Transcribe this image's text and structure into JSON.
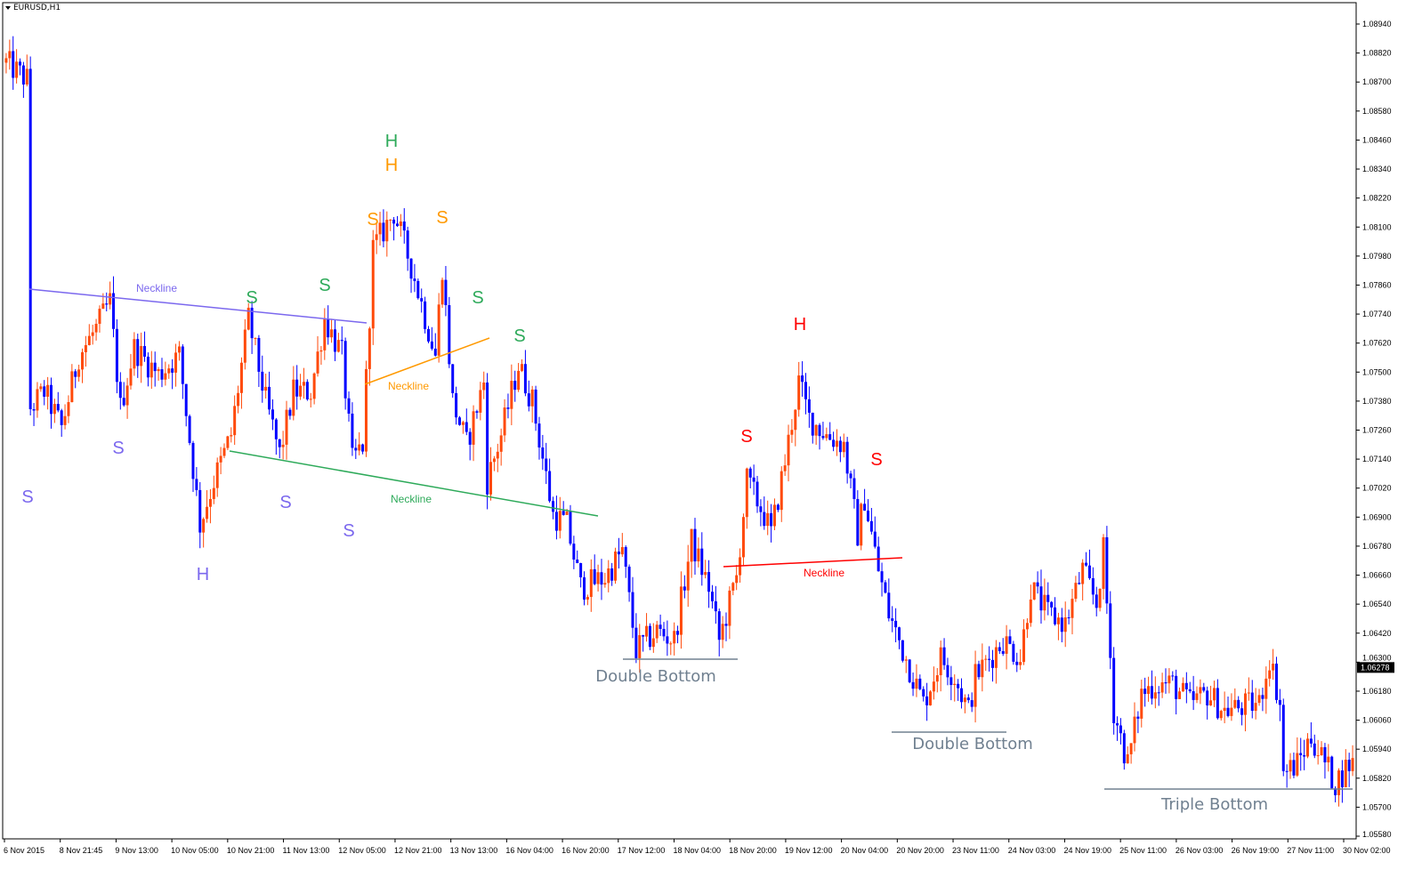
{
  "header": {
    "symbol_timeframe": "EURUSD,H1"
  },
  "colors": {
    "bull": "#ff4a0a",
    "bear": "#0000ff",
    "purple": "#7b68ee",
    "green": "#2eaa5a",
    "orange": "#ff9900",
    "red": "#ff0000",
    "gray": "#708090"
  },
  "chart_data": {
    "type": "candlestick",
    "symbol": "EURUSD",
    "timeframe": "H1",
    "ylim": [
      1.0558,
      1.0896
    ],
    "y_ticks": [
      "1.08940",
      "1.08820",
      "1.08700",
      "1.08580",
      "1.08460",
      "1.08340",
      "1.08220",
      "1.08100",
      "1.07980",
      "1.07860",
      "1.07740",
      "1.07620",
      "1.07500",
      "1.07380",
      "1.07260",
      "1.07140",
      "1.07020",
      "1.06900",
      "1.06780",
      "1.06660",
      "1.06540",
      "1.06420",
      "1.06300",
      "1.06180",
      "1.06060",
      "1.05940",
      "1.05820",
      "1.05700",
      "1.05580"
    ],
    "x_ticks": [
      "6 Nov 2015",
      "8 Nov 21:45",
      "9 Nov 13:00",
      "10 Nov 05:00",
      "10 Nov 21:00",
      "11 Nov 13:00",
      "12 Nov 05:00",
      "12 Nov 21:00",
      "13 Nov 13:00",
      "16 Nov 04:00",
      "16 Nov 20:00",
      "17 Nov 12:00",
      "18 Nov 04:00",
      "18 Nov 20:00",
      "19 Nov 12:00",
      "20 Nov 04:00",
      "20 Nov 20:00",
      "23 Nov 11:00",
      "24 Nov 03:00",
      "24 Nov 19:00",
      "25 Nov 11:00",
      "26 Nov 03:00",
      "26 Nov 19:00",
      "27 Nov 11:00",
      "30 Nov 02:00"
    ],
    "current_price": "1.06278",
    "bars": 390,
    "price_path": [
      [
        1,
        1.0878
      ],
      [
        7,
        1.0871
      ],
      [
        8,
        1.0735
      ],
      [
        12,
        1.0742
      ],
      [
        17,
        1.0727
      ],
      [
        22,
        1.0757
      ],
      [
        27,
        1.0768
      ],
      [
        31,
        1.0779
      ],
      [
        34,
        1.0735
      ],
      [
        38,
        1.076
      ],
      [
        45,
        1.0749
      ],
      [
        51,
        1.0757
      ],
      [
        57,
        1.0687
      ],
      [
        61,
        1.0705
      ],
      [
        66,
        1.0724
      ],
      [
        71,
        1.0772
      ],
      [
        76,
        1.0738
      ],
      [
        80,
        1.0716
      ],
      [
        84,
        1.0742
      ],
      [
        89,
        1.0742
      ],
      [
        93,
        1.0772
      ],
      [
        98,
        1.0757
      ],
      [
        101,
        1.0713
      ],
      [
        104,
        1.072
      ],
      [
        107,
        1.0801
      ],
      [
        113,
        1.0816
      ],
      [
        118,
        1.0794
      ],
      [
        125,
        1.0757
      ],
      [
        127,
        1.0794
      ],
      [
        130,
        1.0738
      ],
      [
        134,
        1.072
      ],
      [
        139,
        1.0746
      ],
      [
        140,
        1.0705
      ],
      [
        144,
        1.0724
      ],
      [
        149,
        1.0753
      ],
      [
        153,
        1.0738
      ],
      [
        159,
        1.0691
      ],
      [
        163,
        1.0687
      ],
      [
        167,
        1.0661
      ],
      [
        174,
        1.0665
      ],
      [
        179,
        1.0676
      ],
      [
        183,
        1.0635
      ],
      [
        189,
        1.0643
      ],
      [
        194,
        1.0639
      ],
      [
        199,
        1.068
      ],
      [
        204,
        1.0661
      ],
      [
        207,
        1.0639
      ],
      [
        212,
        1.0665
      ],
      [
        215,
        1.0705
      ],
      [
        220,
        1.0691
      ],
      [
        222,
        1.0683
      ],
      [
        226,
        1.0713
      ],
      [
        230,
        1.0746
      ],
      [
        233,
        1.0731
      ],
      [
        238,
        1.0724
      ],
      [
        243,
        1.072
      ],
      [
        247,
        1.0683
      ],
      [
        249,
        1.0698
      ],
      [
        253,
        1.0668
      ],
      [
        256,
        1.065
      ],
      [
        263,
        1.0624
      ],
      [
        266,
        1.0613
      ],
      [
        271,
        1.0632
      ],
      [
        275,
        1.0624
      ],
      [
        279,
        1.061
      ],
      [
        281,
        1.0624
      ],
      [
        289,
        1.0639
      ],
      [
        294,
        1.0632
      ],
      [
        297,
        1.0661
      ],
      [
        302,
        1.065
      ],
      [
        307,
        1.0646
      ],
      [
        312,
        1.0668
      ],
      [
        316,
        1.0654
      ],
      [
        318,
        1.0676
      ],
      [
        321,
        1.061
      ],
      [
        325,
        1.0588
      ],
      [
        329,
        1.0617
      ],
      [
        333,
        1.0621
      ],
      [
        338,
        1.0621
      ],
      [
        343,
        1.0613
      ],
      [
        348,
        1.0617
      ],
      [
        353,
        1.061
      ],
      [
        363,
        1.0613
      ],
      [
        366,
        1.0632
      ],
      [
        369,
        1.0613
      ],
      [
        370,
        1.0584
      ],
      [
        374,
        1.0588
      ],
      [
        378,
        1.0599
      ],
      [
        381,
        1.0591
      ],
      [
        385,
        1.058
      ],
      [
        389,
        1.0588
      ]
    ],
    "annotations": {
      "purple": {
        "labels": [
          "S",
          "S",
          "H",
          "S",
          "S"
        ],
        "neckline": "Neckline"
      },
      "green": {
        "labels": [
          "H",
          "S",
          "S",
          "S",
          "S"
        ],
        "neckline": "Neckline"
      },
      "orange": {
        "labels": [
          "H",
          "S",
          "S"
        ],
        "neckline": "Neckline"
      },
      "red": {
        "labels": [
          "H",
          "S",
          "S"
        ],
        "neckline": "Neckline"
      },
      "gray": {
        "labels": [
          "Double Bottom",
          "Double Bottom",
          "Triple Bottom"
        ]
      }
    }
  }
}
